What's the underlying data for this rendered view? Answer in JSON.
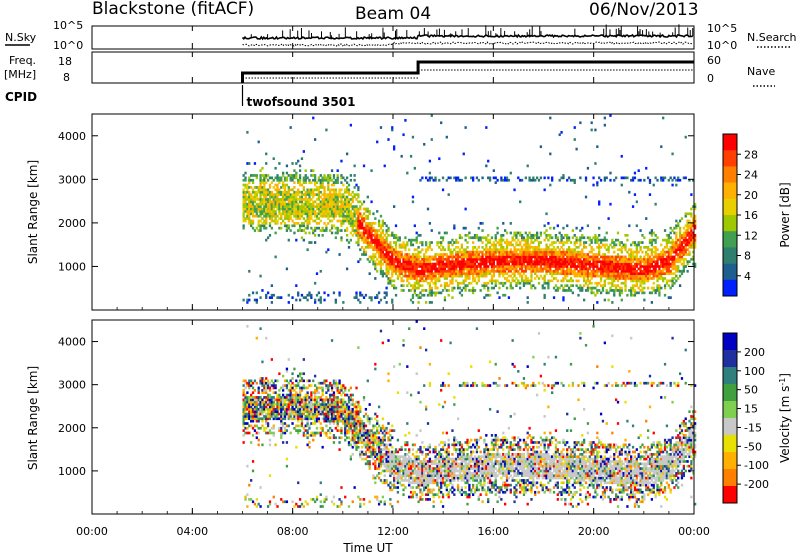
{
  "header": {
    "station": "Blackstone (fitACF)",
    "beam": "Beam 04",
    "date": "06/Nov/2013"
  },
  "noise_panel": {
    "left_label": "N.Sky",
    "left_ticks": [
      "10^5",
      "10^0"
    ],
    "right_ticks": [
      "10^5",
      "10^0"
    ],
    "right_label": "N.Search"
  },
  "freq_panel": {
    "left_label_1": "Freq.",
    "left_label_2": "[MHz]",
    "left_ticks": [
      "18",
      "8"
    ],
    "right_ticks": [
      "60",
      "0"
    ],
    "right_label": "Nave"
  },
  "cpid": {
    "label": "CPID",
    "program": "twofsound 3501"
  },
  "x_axis": {
    "title": "Time UT",
    "ticks": [
      "00:00",
      "04:00",
      "08:00",
      "12:00",
      "16:00",
      "20:00",
      "00:00"
    ]
  },
  "chart_data": [
    {
      "type": "heatmap",
      "title": "",
      "xlabel": "Time UT",
      "ylabel": "Slant Range [km]",
      "x_range_hours": [
        0,
        24
      ],
      "ylim": [
        0,
        4500
      ],
      "y_ticks": [
        "1000",
        "2000",
        "3000",
        "4000"
      ],
      "y_tick_values": [
        1000,
        2000,
        3000,
        4000
      ],
      "colorbar": {
        "label": "Power [dB]",
        "ticks": [
          "28",
          "24",
          "20",
          "16",
          "12",
          "8",
          "4"
        ],
        "colors": [
          "#ff0000",
          "#ff4000",
          "#ff8000",
          "#ffb000",
          "#e8d000",
          "#a0c800",
          "#40a050",
          "#2f7f6f",
          "#1f5f8f",
          "#0020ff"
        ]
      },
      "data_start_hour": 6.0,
      "echo_band_km": [
        [
          6.0,
          2450
        ],
        [
          8.0,
          2450
        ],
        [
          10.0,
          2350
        ],
        [
          11.0,
          1700
        ],
        [
          12.0,
          1100
        ],
        [
          13.0,
          900
        ],
        [
          14.0,
          1000
        ],
        [
          16.0,
          1100
        ],
        [
          18.0,
          1100
        ],
        [
          20.0,
          1000
        ],
        [
          22.0,
          900
        ],
        [
          23.0,
          1100
        ],
        [
          24.0,
          1800
        ]
      ]
    },
    {
      "type": "heatmap",
      "title": "",
      "xlabel": "Time UT",
      "ylabel": "Slant Range [km]",
      "x_range_hours": [
        0,
        24
      ],
      "ylim": [
        0,
        4500
      ],
      "y_ticks": [
        "1000",
        "2000",
        "3000",
        "4000"
      ],
      "y_tick_values": [
        1000,
        2000,
        3000,
        4000
      ],
      "colorbar": {
        "label": "Velocity [m s^-1]",
        "ticks": [
          "200",
          "100",
          "50",
          "15",
          "-15",
          "-50",
          "-100",
          "-200"
        ],
        "colors": [
          "#0000c0",
          "#2030a0",
          "#2f7f7f",
          "#40a040",
          "#80d050",
          "#c8c8c8",
          "#e8e000",
          "#ffb000",
          "#ff8000",
          "#ff0000"
        ]
      },
      "data_start_hour": 6.0
    }
  ]
}
